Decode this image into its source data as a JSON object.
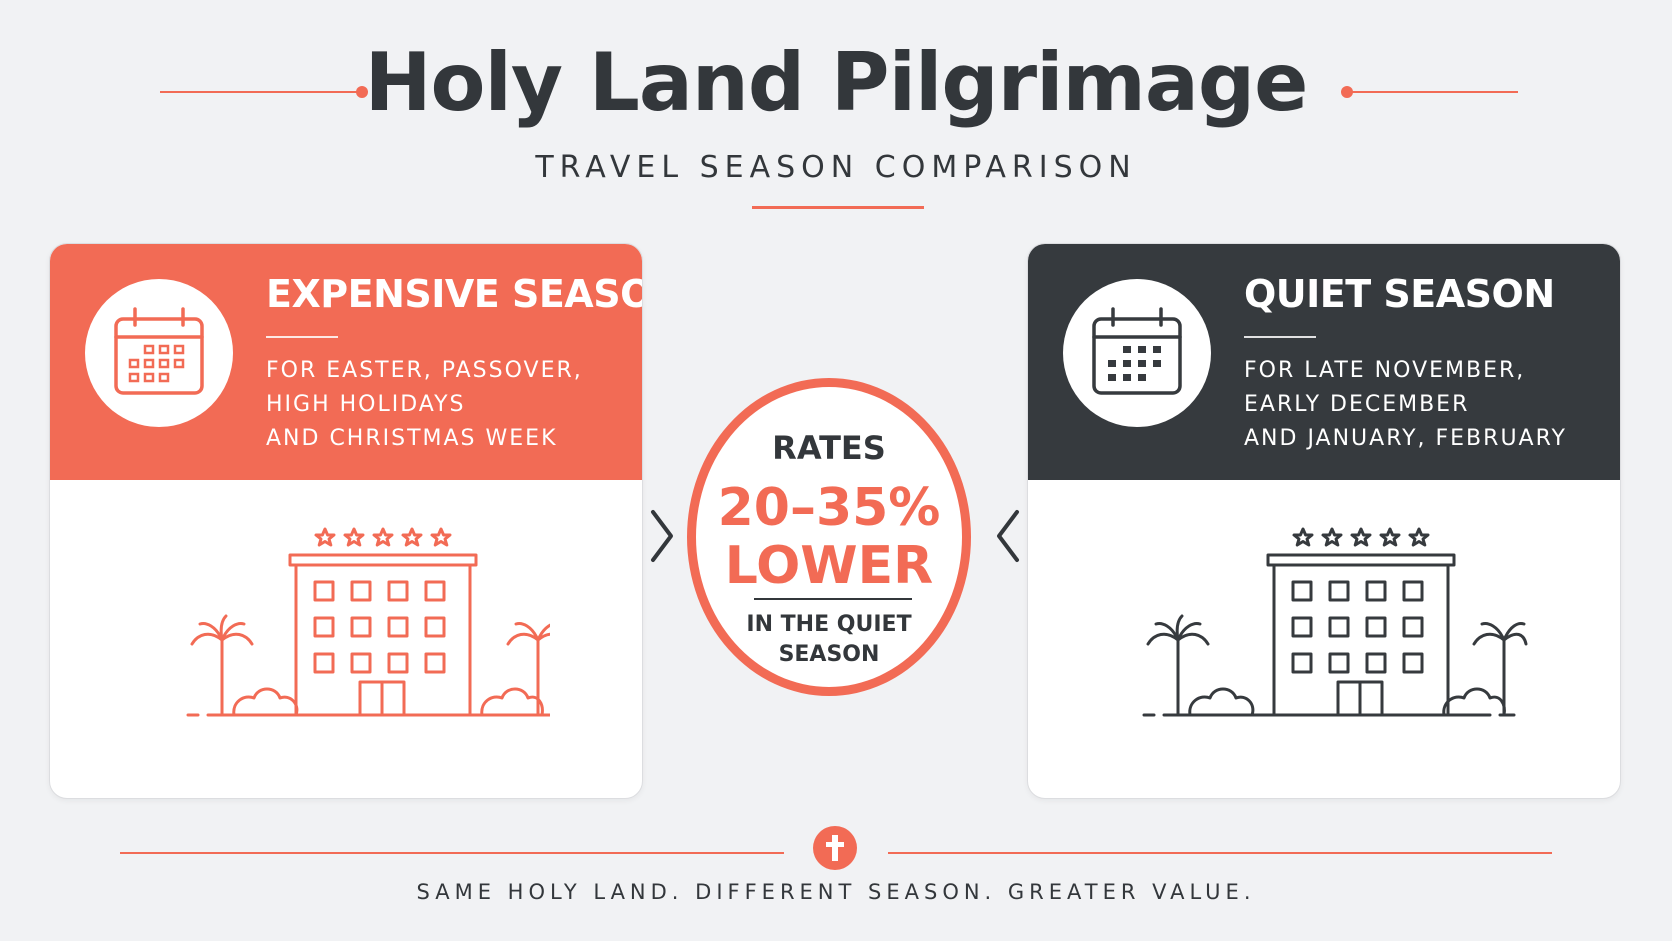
{
  "header": {
    "title": "Holy Land Pilgrimage",
    "subtitle": "TRAVEL SEASON COMPARISON"
  },
  "expensive": {
    "title": "EXPENSIVE SEASON",
    "lines": [
      "FOR EASTER, PASSOVER,",
      "HIGH HOLIDAYS",
      "AND CHRISTMAS WEEK"
    ],
    "accent": "#f26b55",
    "icon": "calendar-icon",
    "hotel_icon": "hotel-icon",
    "star_count": 5
  },
  "quiet": {
    "title": "QUIET SEASON",
    "lines": [
      "FOR LATE NOVEMBER,",
      "EARLY DECEMBER",
      "AND JANUARY, FEBRUARY"
    ],
    "accent": "#363a3e",
    "icon": "calendar-icon",
    "hotel_icon": "hotel-icon",
    "star_count": 5
  },
  "comparison": {
    "label": "RATES",
    "value_line1": "20–35%",
    "value_line2": "LOWER",
    "note_line1": "IN THE QUIET",
    "note_line2": "SEASON"
  },
  "footer": {
    "tagline": "SAME HOLY LAND. DIFFERENT SEASON. GREATER VALUE.",
    "icon": "cross-icon"
  },
  "colors": {
    "accent": "#f26b55",
    "dark": "#363a3e",
    "background": "#f1f2f4"
  }
}
